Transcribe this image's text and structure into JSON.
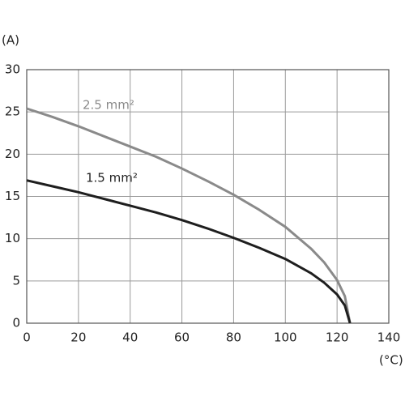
{
  "chart_data": {
    "type": "line",
    "y_label": "(A)",
    "x_label": "(°C)",
    "xlim": [
      0,
      140
    ],
    "xticks": [
      0,
      20,
      40,
      60,
      80,
      100,
      120,
      140
    ],
    "ylim": [
      0,
      30
    ],
    "yticks": [
      0,
      5,
      10,
      15,
      20,
      25,
      30
    ],
    "grid": true,
    "x": [
      0,
      10,
      20,
      30,
      40,
      50,
      60,
      70,
      80,
      90,
      100,
      110,
      115,
      120,
      123,
      125
    ],
    "series": [
      {
        "name": "2.5 mm²",
        "color": "#8a8a8a",
        "values": [
          25.4,
          24.4,
          23.3,
          22.1,
          20.9,
          19.7,
          18.3,
          16.8,
          15.2,
          13.4,
          11.4,
          8.8,
          7.2,
          5.1,
          3.2,
          0
        ]
      },
      {
        "name": "1.5 mm²",
        "color": "#1e1e1e",
        "values": [
          16.9,
          16.2,
          15.5,
          14.7,
          13.9,
          13.1,
          12.2,
          11.2,
          10.1,
          8.9,
          7.6,
          5.9,
          4.8,
          3.4,
          2.1,
          0
        ]
      }
    ]
  }
}
